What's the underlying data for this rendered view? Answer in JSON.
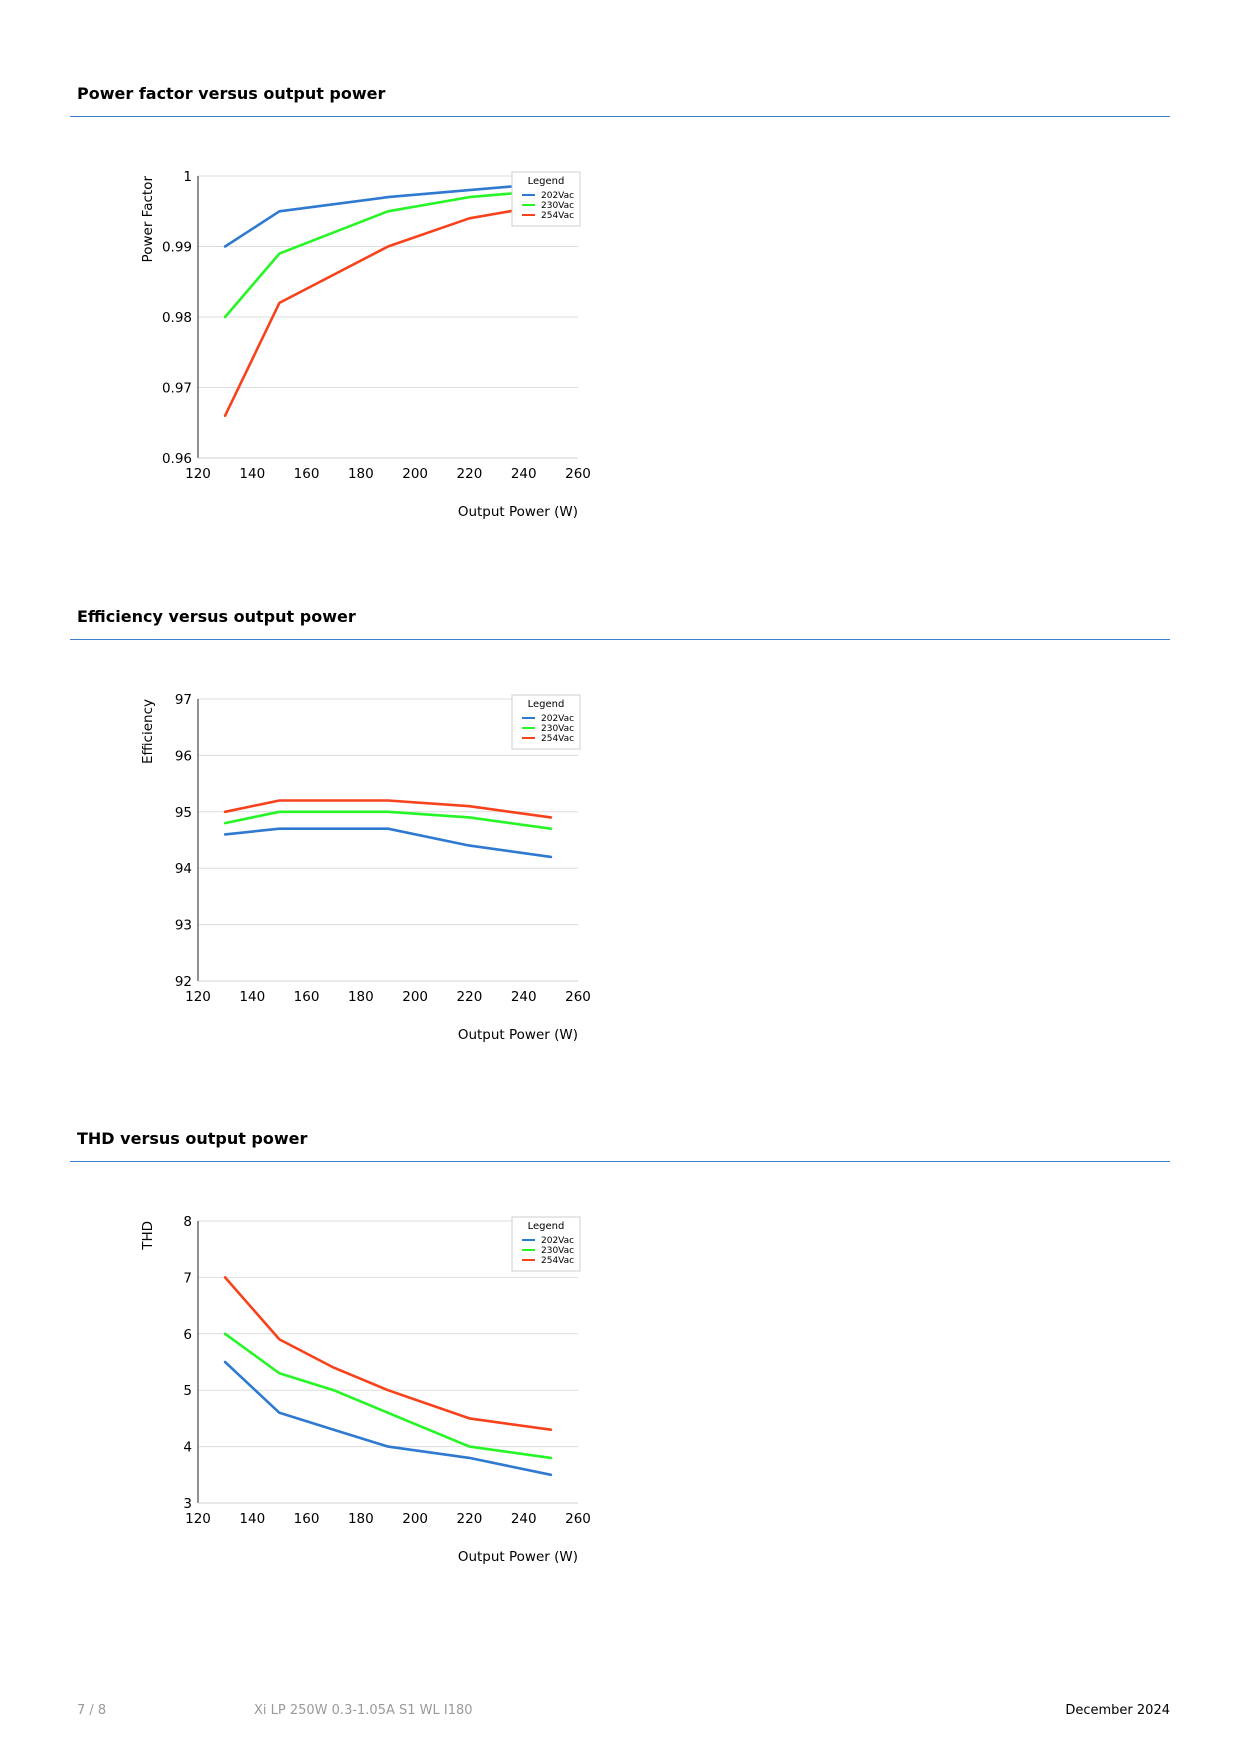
{
  "footer": {
    "page": "7 / 8",
    "product": "Xi LP 250W 0.3-1.05A S1 WL I180",
    "date": "December 2024"
  },
  "colors": {
    "rule": "#3f7fd0",
    "grid": "#dedede"
  },
  "chart_data": [
    {
      "type": "line",
      "title": "Power factor versus output power",
      "xlabel": "Output Power (W)",
      "ylabel": "Power Factor",
      "xlim": [
        120,
        260
      ],
      "ylim": [
        0.96,
        1
      ],
      "xticks": [
        "120",
        "140",
        "160",
        "180",
        "200",
        "220",
        "240",
        "260"
      ],
      "yticks": [
        "0.96",
        "0.97",
        "0.98",
        "0.99",
        "1"
      ],
      "grid": true,
      "legend": {
        "title": "Legend",
        "position": "top-right"
      },
      "x": [
        130,
        150,
        190,
        220,
        250
      ],
      "series": [
        {
          "name": "202Vac",
          "color": "#2f7ad0",
          "values": [
            0.99,
            0.995,
            0.997,
            0.998,
            0.999
          ]
        },
        {
          "name": "230Vac",
          "color": "#26f526",
          "values": [
            0.98,
            0.989,
            0.995,
            0.997,
            0.998
          ]
        },
        {
          "name": "254Vac",
          "color": "#f7421b",
          "values": [
            0.966,
            0.982,
            0.99,
            0.994,
            0.996
          ]
        }
      ]
    },
    {
      "type": "line",
      "title": "Efficiency versus output power",
      "xlabel": "Output Power (W)",
      "ylabel": "Efficiency",
      "xlim": [
        120,
        260
      ],
      "ylim": [
        92,
        97
      ],
      "xticks": [
        "120",
        "140",
        "160",
        "180",
        "200",
        "220",
        "240",
        "260"
      ],
      "yticks": [
        "92",
        "93",
        "94",
        "95",
        "96",
        "97"
      ],
      "grid": true,
      "legend": {
        "title": "Legend",
        "position": "top-right"
      },
      "x": [
        130,
        150,
        190,
        220,
        250
      ],
      "series": [
        {
          "name": "202Vac",
          "color": "#2f7ad0",
          "values": [
            94.6,
            94.7,
            94.7,
            94.4,
            94.2
          ]
        },
        {
          "name": "230Vac",
          "color": "#26f526",
          "values": [
            94.8,
            95.0,
            95.0,
            94.9,
            94.7
          ]
        },
        {
          "name": "254Vac",
          "color": "#f7421b",
          "values": [
            95.0,
            95.2,
            95.2,
            95.1,
            94.9
          ]
        }
      ]
    },
    {
      "type": "line",
      "title": "THD versus output power",
      "xlabel": "Output Power (W)",
      "ylabel": "THD",
      "xlim": [
        120,
        260
      ],
      "ylim": [
        3,
        8
      ],
      "xticks": [
        "120",
        "140",
        "160",
        "180",
        "200",
        "220",
        "240",
        "260"
      ],
      "yticks": [
        "3",
        "4",
        "5",
        "6",
        "7",
        "8"
      ],
      "grid": true,
      "legend": {
        "title": "Legend",
        "position": "top-right"
      },
      "x": [
        130,
        150,
        170,
        190,
        220,
        250
      ],
      "series": [
        {
          "name": "202Vac",
          "color": "#2f7ad0",
          "values": [
            5.5,
            4.6,
            4.3,
            4.0,
            3.8,
            3.5
          ]
        },
        {
          "name": "230Vac",
          "color": "#26f526",
          "values": [
            6.0,
            5.3,
            5.0,
            4.6,
            4.0,
            3.8
          ]
        },
        {
          "name": "254Vac",
          "color": "#f7421b",
          "values": [
            7.0,
            5.9,
            5.4,
            5.0,
            4.5,
            4.3
          ]
        }
      ]
    }
  ]
}
